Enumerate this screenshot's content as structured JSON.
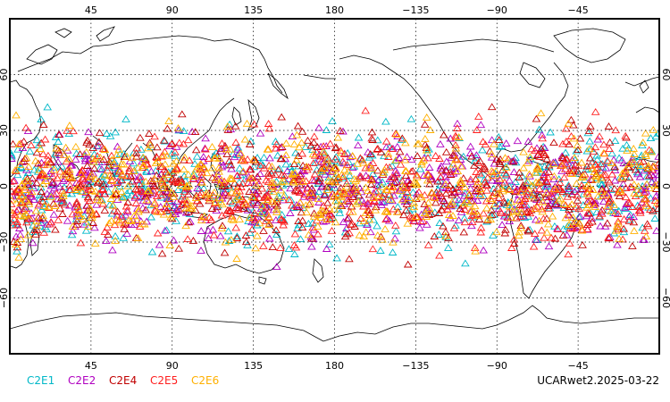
{
  "product_id": "UCARwet2.2025-03-22",
  "lon_ticks": [
    "45",
    "90",
    "135",
    "180",
    "−135",
    "−90",
    "−45"
  ],
  "lat_ticks": [
    "60",
    "30",
    "0",
    "−30",
    "−60"
  ],
  "legend": [
    {
      "label": "C2E1",
      "color": "#00b8c8"
    },
    {
      "label": "C2E2",
      "color": "#b000c0"
    },
    {
      "label": "C2E4",
      "color": "#c00000"
    },
    {
      "label": "C2E5",
      "color": "#ff2020"
    },
    {
      "label": "C2E6",
      "color": "#ffb000"
    }
  ],
  "map": {
    "projection": "equirectangular",
    "center_longitude": 180,
    "lon_range": [
      0,
      360
    ],
    "lat_range": [
      -90,
      90
    ],
    "grid_step_lon": 45,
    "grid_step_lat": 30,
    "observation_lat_band": [
      -45,
      45
    ],
    "marker_symbol": "open-triangle"
  }
}
